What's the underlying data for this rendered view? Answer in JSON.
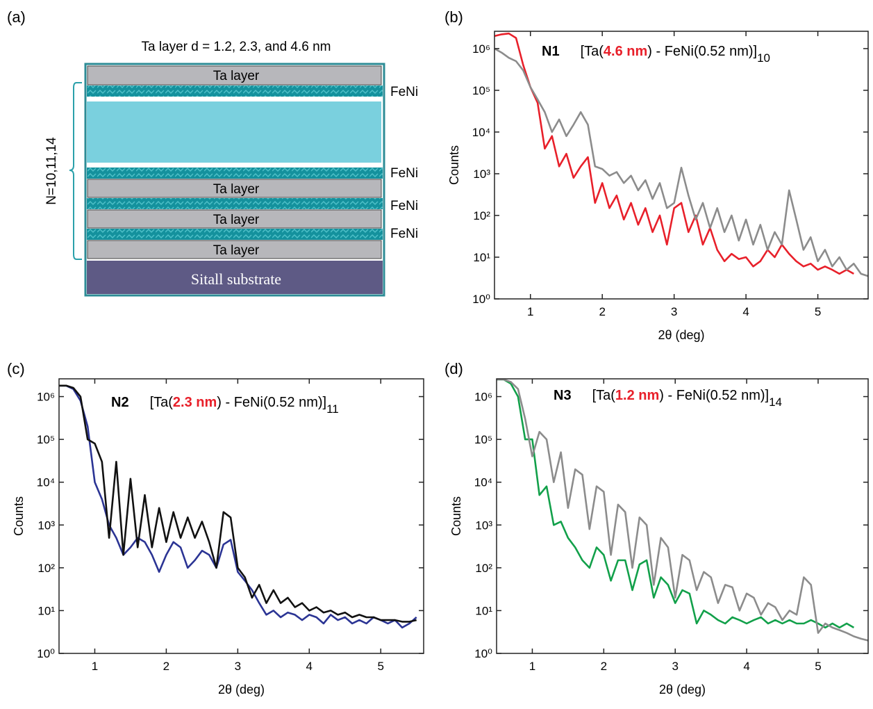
{
  "diagram": {
    "panel_label": "(a)",
    "caption": "Ta layer d = 1.2, 2.3, and 4.6 nm",
    "ta_labels": [
      "Ta layer",
      "Ta layer",
      "Ta layer",
      "Ta layer"
    ],
    "feni_labels": [
      "FeNi",
      "FeNi",
      "FeNi",
      "FeNi"
    ],
    "repeat_label": "N=10,11,14",
    "substrate": "Sitall substrate"
  },
  "chart_data": [
    {
      "panel_label": "(b)",
      "type": "line",
      "sample": "N1",
      "formula": {
        "prefix": "[Ta(",
        "thickness": "4.6 nm",
        "suffix": ") - FeNi(0.52 nm)]",
        "repeat": "10"
      },
      "x_label": "2θ (deg)",
      "y_label": "Counts",
      "log_y": true,
      "grid": false,
      "xlim": [
        0.5,
        5.7
      ],
      "ylim": [
        1,
        2600000
      ],
      "xticks": [
        1,
        2,
        3,
        4,
        5
      ],
      "yticks": [
        {
          "value": 1,
          "label": "10⁰"
        },
        {
          "value": 10,
          "label": "10¹"
        },
        {
          "value": 100,
          "label": "10²"
        },
        {
          "value": 1000,
          "label": "10³"
        },
        {
          "value": 10000,
          "label": "10⁴"
        },
        {
          "value": 100000,
          "label": "10⁵"
        },
        {
          "value": 1000000,
          "label": "10⁶"
        }
      ],
      "x": [
        0.5,
        0.6,
        0.7,
        0.8,
        0.9,
        1.0,
        1.1,
        1.2,
        1.3,
        1.4,
        1.5,
        1.6,
        1.7,
        1.8,
        1.9,
        2.0,
        2.1,
        2.2,
        2.3,
        2.4,
        2.5,
        2.6,
        2.7,
        2.8,
        2.9,
        3.0,
        3.1,
        3.2,
        3.3,
        3.4,
        3.5,
        3.6,
        3.7,
        3.8,
        3.9,
        4.0,
        4.1,
        4.2,
        4.3,
        4.4,
        4.5,
        4.6,
        4.7,
        4.8,
        4.9,
        5.0,
        5.1,
        5.2,
        5.3,
        5.4,
        5.5,
        5.6,
        5.7
      ],
      "series": [
        {
          "color": "#e8202a",
          "values": [
            2000000,
            2200000,
            2300000,
            1800000,
            400000,
            120000,
            50000,
            4000,
            8000,
            1500,
            3000,
            800,
            1500,
            2500,
            200,
            600,
            150,
            300,
            80,
            200,
            60,
            150,
            40,
            100,
            20,
            150,
            200,
            40,
            100,
            20,
            50,
            15,
            8,
            12,
            9,
            10,
            6,
            8,
            15,
            10,
            20,
            12,
            8,
            6,
            7,
            5,
            6,
            5,
            4,
            5,
            4,
            null,
            null
          ]
        },
        {
          "color": "#8c8c8c",
          "values": [
            1000000,
            800000,
            600000,
            500000,
            300000,
            120000,
            60000,
            30000,
            10000,
            20000,
            8000,
            15000,
            30000,
            15000,
            1500,
            1300,
            900,
            1100,
            600,
            900,
            400,
            700,
            250,
            600,
            150,
            200,
            1400,
            300,
            80,
            200,
            50,
            150,
            40,
            100,
            25,
            80,
            20,
            60,
            15,
            40,
            20,
            400,
            80,
            15,
            30,
            8,
            15,
            6,
            10,
            5,
            7,
            4,
            3.5
          ]
        }
      ]
    },
    {
      "panel_label": "(c)",
      "type": "line",
      "sample": "N2",
      "formula": {
        "prefix": "[Ta(",
        "thickness": "2.3 nm",
        "suffix": ") - FeNi(0.52 nm)]",
        "repeat": "11"
      },
      "x_label": "2θ (deg)",
      "y_label": "Counts",
      "log_y": true,
      "grid": false,
      "xlim": [
        0.5,
        5.6
      ],
      "ylim": [
        1,
        2600000
      ],
      "xticks": [
        1,
        2,
        3,
        4,
        5
      ],
      "yticks": [
        {
          "value": 1,
          "label": "10⁰"
        },
        {
          "value": 10,
          "label": "10¹"
        },
        {
          "value": 100,
          "label": "10²"
        },
        {
          "value": 1000,
          "label": "10³"
        },
        {
          "value": 10000,
          "label": "10⁴"
        },
        {
          "value": 100000,
          "label": "10⁵"
        },
        {
          "value": 1000000,
          "label": "10⁶"
        }
      ],
      "x": [
        0.5,
        0.6,
        0.7,
        0.8,
        0.9,
        1.0,
        1.1,
        1.2,
        1.3,
        1.4,
        1.5,
        1.6,
        1.7,
        1.8,
        1.9,
        2.0,
        2.1,
        2.2,
        2.3,
        2.4,
        2.5,
        2.6,
        2.7,
        2.8,
        2.9,
        3.0,
        3.1,
        3.2,
        3.3,
        3.4,
        3.5,
        3.6,
        3.7,
        3.8,
        3.9,
        4.0,
        4.1,
        4.2,
        4.3,
        4.4,
        4.5,
        4.6,
        4.7,
        4.8,
        4.9,
        5.0,
        5.1,
        5.2,
        5.3,
        5.4,
        5.5
      ],
      "series": [
        {
          "color": "#2b3494",
          "values": [
            1800000,
            1800000,
            1500000,
            800000,
            200000,
            10000,
            4000,
            1000,
            500,
            200,
            300,
            500,
            400,
            200,
            80,
            200,
            400,
            300,
            100,
            150,
            250,
            200,
            100,
            350,
            450,
            80,
            50,
            30,
            15,
            8,
            10,
            7,
            9,
            8,
            6,
            8,
            7,
            5,
            8,
            6,
            7,
            5,
            6,
            5,
            7,
            6,
            5,
            6,
            4,
            5,
            7
          ]
        },
        {
          "color": "#111111",
          "values": [
            1800000,
            1800000,
            1600000,
            1000000,
            100000,
            80000,
            30000,
            500,
            30000,
            200,
            12000,
            300,
            5000,
            300,
            2500,
            400,
            2000,
            500,
            1500,
            500,
            1200,
            400,
            100,
            2000,
            1500,
            100,
            60,
            20,
            40,
            15,
            30,
            15,
            20,
            12,
            15,
            10,
            12,
            9,
            10,
            8,
            9,
            7,
            8,
            7,
            7,
            6,
            6,
            6,
            5.5,
            5.5,
            6
          ]
        }
      ]
    },
    {
      "panel_label": "(d)",
      "type": "line",
      "sample": "N3",
      "formula": {
        "prefix": "[Ta(",
        "thickness": "1.2 nm",
        "suffix": ") - FeNi(0.52 nm)]",
        "repeat": "14"
      },
      "x_label": "2θ (deg)",
      "y_label": "Counts",
      "log_y": true,
      "grid": false,
      "xlim": [
        0.5,
        5.7
      ],
      "ylim": [
        1,
        2600000
      ],
      "xticks": [
        1,
        2,
        3,
        4,
        5
      ],
      "yticks": [
        {
          "value": 1,
          "label": "10⁰"
        },
        {
          "value": 10,
          "label": "10¹"
        },
        {
          "value": 100,
          "label": "10²"
        },
        {
          "value": 1000,
          "label": "10³"
        },
        {
          "value": 10000,
          "label": "10⁴"
        },
        {
          "value": 100000,
          "label": "10⁵"
        },
        {
          "value": 1000000,
          "label": "10⁶"
        }
      ],
      "x": [
        0.5,
        0.6,
        0.7,
        0.8,
        0.9,
        1.0,
        1.1,
        1.2,
        1.3,
        1.4,
        1.5,
        1.6,
        1.7,
        1.8,
        1.9,
        2.0,
        2.1,
        2.2,
        2.3,
        2.4,
        2.5,
        2.6,
        2.7,
        2.8,
        2.9,
        3.0,
        3.1,
        3.2,
        3.3,
        3.4,
        3.5,
        3.6,
        3.7,
        3.8,
        3.9,
        4.0,
        4.1,
        4.2,
        4.3,
        4.4,
        4.5,
        4.6,
        4.7,
        4.8,
        4.9,
        5.0,
        5.1,
        5.2,
        5.3,
        5.4,
        5.5,
        5.6,
        5.7
      ],
      "series": [
        {
          "color": "#12a04a",
          "values": [
            2500000,
            2500000,
            2000000,
            1000000,
            100000,
            100000,
            5000,
            8000,
            1000,
            1200,
            500,
            300,
            150,
            100,
            300,
            200,
            50,
            150,
            150,
            30,
            120,
            150,
            20,
            60,
            40,
            15,
            30,
            25,
            5,
            10,
            8,
            6,
            5,
            7,
            6,
            5,
            6,
            7,
            5,
            6,
            5,
            6,
            5,
            5,
            6,
            5,
            4,
            5,
            4,
            5,
            4,
            null,
            null
          ]
        },
        {
          "color": "#8c8c8c",
          "values": [
            2500000,
            2500000,
            2200000,
            1500000,
            300000,
            40000,
            150000,
            100000,
            10000,
            50000,
            2500,
            20000,
            15000,
            800,
            8000,
            6000,
            200,
            3000,
            2000,
            100,
            1500,
            1000,
            40,
            500,
            300,
            20,
            200,
            150,
            30,
            80,
            60,
            15,
            40,
            35,
            10,
            25,
            20,
            8,
            15,
            12,
            6,
            10,
            8,
            60,
            40,
            3,
            5,
            4,
            3.5,
            3,
            2.5,
            2.2,
            2
          ]
        }
      ]
    }
  ]
}
